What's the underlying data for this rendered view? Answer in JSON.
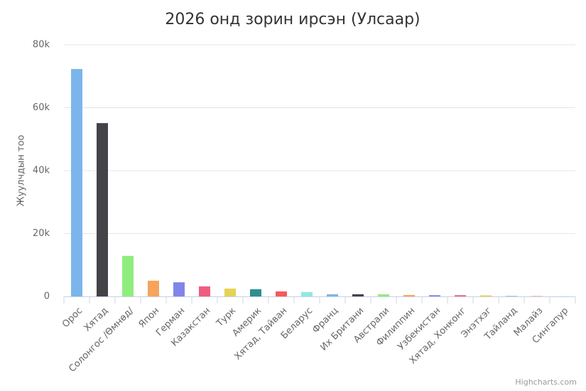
{
  "chart_data": {
    "type": "bar",
    "title": "2026 онд зорин ирсэн (Улсаар)",
    "y_axis_title": "Жуулчдын тоо",
    "credits": "Highcharts.com",
    "categories": [
      "Орос",
      "Хятад",
      "Солонгос /Өмнөд/",
      "Япон",
      "Герман",
      "Казакстан",
      "Турк",
      "Америк",
      "Хятад, Тайван",
      "Беларус",
      "Франц",
      "Их Британи",
      "Австрали",
      "Филиппин",
      "Узбекистан",
      "Хятад, Хонконг",
      "Энэтхэг",
      "Тайланд",
      "Малайз",
      "Сингапур"
    ],
    "values": [
      72300,
      55100,
      12900,
      5000,
      4500,
      3200,
      2500,
      2300,
      1600,
      1400,
      700,
      700,
      700,
      450,
      400,
      400,
      350,
      100,
      80,
      60
    ],
    "colors": [
      "#7cb5ec",
      "#434348",
      "#90ed7d",
      "#f7a35c",
      "#8085e9",
      "#f15c80",
      "#e4d354",
      "#2b908f",
      "#f45b5b",
      "#91e8e1",
      "#7cb5ec",
      "#434348",
      "#90ed7d",
      "#f7a35c",
      "#8085e9",
      "#f15c80",
      "#e4d354",
      "#2b908f",
      "#f45b5b",
      "#91e8e1"
    ],
    "ylim": [
      0,
      80000
    ],
    "yticks": [
      0,
      {
        "value": 20000,
        "label": "20k"
      },
      {
        "value": 40000,
        "label": "40k"
      },
      {
        "value": 60000,
        "label": "60k"
      },
      {
        "value": 80000,
        "label": "80k"
      }
    ],
    "grid": true
  }
}
